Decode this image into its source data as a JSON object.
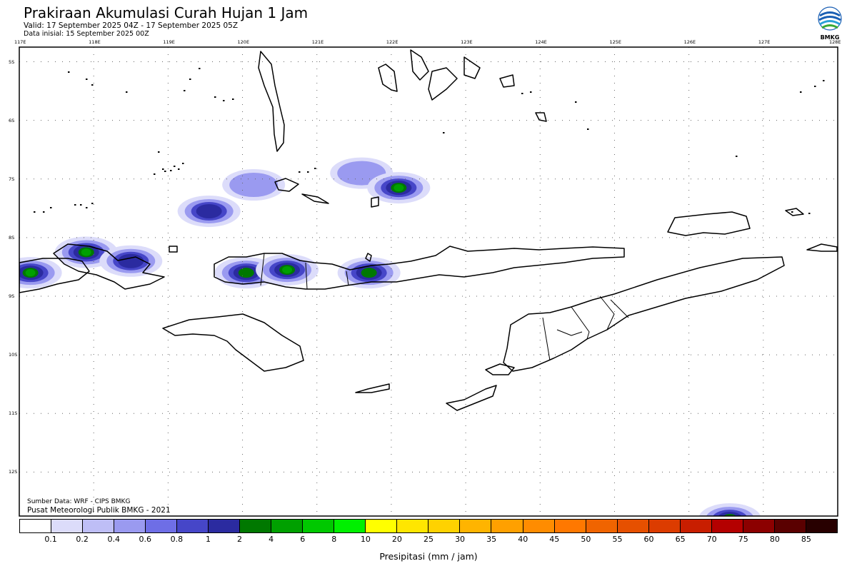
{
  "header": {
    "title": "Prakiraan Akumulasi Curah Hujan 1 Jam",
    "valid": "Valid: 17 September 2025 04Z - 17 September 2025 05Z",
    "initial": "Data inisial: 15 September 2025 00Z"
  },
  "logo": {
    "text": "BMKG",
    "icon": "bmkg-logo"
  },
  "map": {
    "lon_labels": [
      "117E",
      "118E",
      "119E",
      "120E",
      "121E",
      "122E",
      "123E",
      "124E",
      "125E",
      "126E",
      "127E",
      "128E"
    ],
    "lat_labels": [
      "5S",
      "6S",
      "7S",
      "8S",
      "9S",
      "10S",
      "11S",
      "12S"
    ],
    "lon_range": [
      117,
      128
    ],
    "lat_range": [
      -4.75,
      -12.75
    ],
    "grid": "dotted"
  },
  "credits": {
    "source": "Sumber Data: WRF - CIPS BMKG",
    "center": "Pusat Meteorologi Publik BMKG - 2021"
  },
  "legend": {
    "title": "Presipitasi (mm / jam)",
    "labels": [
      "0.1",
      "0.2",
      "0.4",
      "0.6",
      "0.8",
      "1",
      "2",
      "4",
      "6",
      "8",
      "10",
      "20",
      "25",
      "30",
      "35",
      "40",
      "45",
      "50",
      "55",
      "60",
      "65",
      "70",
      "75",
      "80",
      "85"
    ],
    "colors": [
      "#ffffff",
      "#dcdcfa",
      "#bebef6",
      "#9a9af0",
      "#6e6ee6",
      "#4646c8",
      "#2b2ba0",
      "#007800",
      "#00a000",
      "#00c800",
      "#00f000",
      "#ffff00",
      "#ffe600",
      "#ffd200",
      "#ffb400",
      "#ffa000",
      "#ff8c00",
      "#ff7800",
      "#f06400",
      "#e65000",
      "#dc3c00",
      "#c81e00",
      "#b40000",
      "#8c0000",
      "#5a0000",
      "#280000"
    ]
  },
  "precip_cells": [
    {
      "lon": 117.15,
      "lat": -8.6,
      "mm": 4
    },
    {
      "lon": 117.9,
      "lat": -8.25,
      "mm": 4
    },
    {
      "lon": 118.5,
      "lat": -8.4,
      "mm": 1
    },
    {
      "lon": 119.55,
      "lat": -7.55,
      "mm": 1
    },
    {
      "lon": 120.15,
      "lat": -7.1,
      "mm": 0.6
    },
    {
      "lon": 120.05,
      "lat": -8.6,
      "mm": 2
    },
    {
      "lon": 120.6,
      "lat": -8.55,
      "mm": 4
    },
    {
      "lon": 121.7,
      "lat": -8.6,
      "mm": 2
    },
    {
      "lon": 121.6,
      "lat": -6.9,
      "mm": 0.6
    },
    {
      "lon": 122.1,
      "lat": -7.15,
      "mm": 4
    },
    {
      "lon": 126.55,
      "lat": -12.8,
      "mm": 2
    }
  ]
}
